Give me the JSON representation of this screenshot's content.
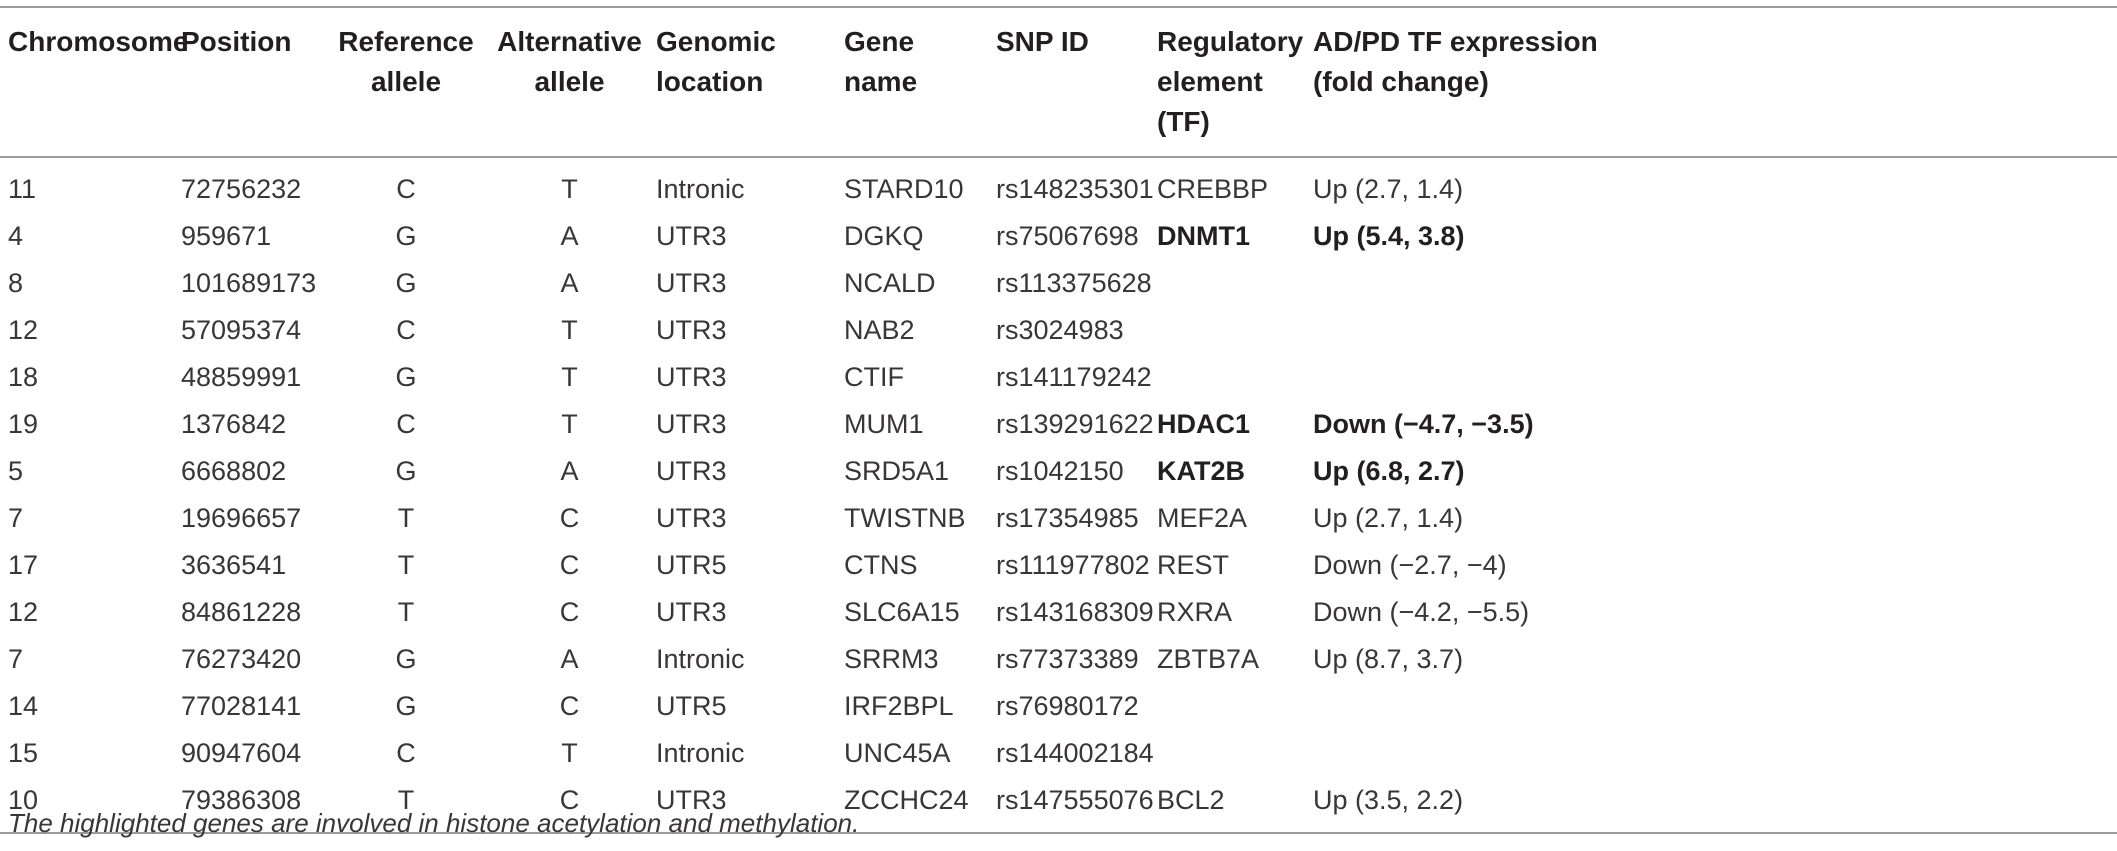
{
  "table": {
    "headers": [
      [
        "Chromosome",
        ""
      ],
      [
        "Position",
        ""
      ],
      [
        "Reference",
        "allele"
      ],
      [
        "Alternative",
        "allele"
      ],
      [
        "Genomic",
        "location"
      ],
      [
        "Gene name",
        ""
      ],
      [
        "SNP ID",
        ""
      ],
      [
        "Regulatory",
        "element (TF)"
      ],
      [
        "AD/PD TF expression",
        "(fold change)"
      ]
    ],
    "rows": [
      [
        "11",
        "72756232",
        "C",
        "T",
        "Intronic",
        "STARD10",
        "rs148235301",
        "CREBBP",
        "Up (2.7, 1.4)"
      ],
      [
        "4",
        "959671",
        "G",
        "A",
        "UTR3",
        "DGKQ",
        "rs75067698",
        "DNMT1",
        "Up (5.4, 3.8)"
      ],
      [
        "8",
        "101689173",
        "G",
        "A",
        "UTR3",
        "NCALD",
        "rs113375628",
        "",
        ""
      ],
      [
        "12",
        "57095374",
        "C",
        "T",
        "UTR3",
        "NAB2",
        "rs3024983",
        "",
        ""
      ],
      [
        "18",
        "48859991",
        "G",
        "T",
        "UTR3",
        "CTIF",
        "rs141179242",
        "",
        ""
      ],
      [
        "19",
        "1376842",
        "C",
        "T",
        "UTR3",
        "MUM1",
        "rs139291622",
        "HDAC1",
        "Down (−4.7, −3.5)"
      ],
      [
        "5",
        "6668802",
        "G",
        "A",
        "UTR3",
        "SRD5A1",
        "rs1042150",
        "KAT2B",
        "Up (6.8, 2.7)"
      ],
      [
        "7",
        "19696657",
        "T",
        "C",
        "UTR3",
        "TWISTNB",
        "rs17354985",
        "MEF2A",
        "Up (2.7, 1.4)"
      ],
      [
        "17",
        "3636541",
        "T",
        "C",
        "UTR5",
        "CTNS",
        "rs111977802",
        "REST",
        "Down (−2.7, −4)"
      ],
      [
        "12",
        "84861228",
        "T",
        "C",
        "UTR3",
        "SLC6A15",
        "rs143168309",
        "RXRA",
        "Down (−4.2, −5.5)"
      ],
      [
        "7",
        "76273420",
        "G",
        "A",
        "Intronic",
        "SRRM3",
        "rs77373389",
        "ZBTB7A",
        "Up (8.7, 3.7)"
      ],
      [
        "14",
        "77028141",
        "G",
        "C",
        "UTR5",
        "IRF2BPL",
        "rs76980172",
        "",
        ""
      ],
      [
        "15",
        "90947604",
        "C",
        "T",
        "Intronic",
        "UNC45A",
        "rs144002184",
        "",
        ""
      ],
      [
        "10",
        "79386308",
        "T",
        "C",
        "UTR3",
        "ZCCHC24",
        "rs147555076",
        "BCL2",
        "Up (3.5, 2.2)"
      ]
    ],
    "highlighted_rows": [
      1,
      5,
      6
    ]
  },
  "footnote": "The highlighted genes are involved in histone acetylation and methylation."
}
